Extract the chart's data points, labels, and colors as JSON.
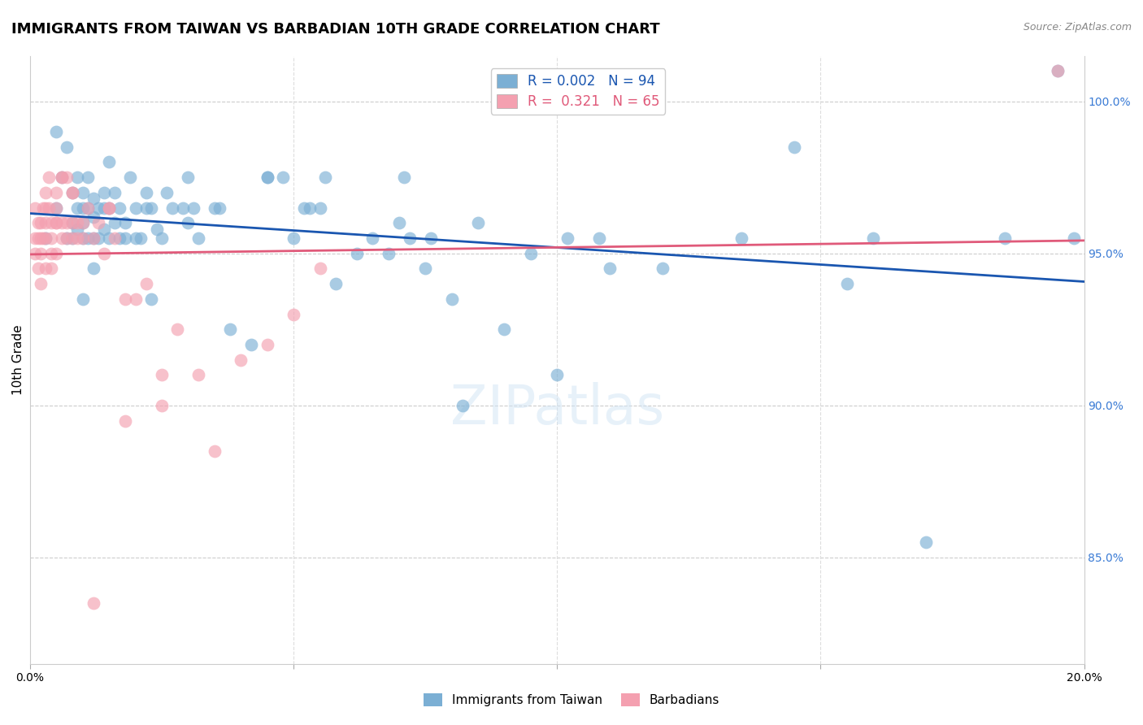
{
  "title": "IMMIGRANTS FROM TAIWAN VS BARBADIAN 10TH GRADE CORRELATION CHART",
  "source": "Source: ZipAtlas.com",
  "ylabel": "10th Grade",
  "xlim": [
    0.0,
    20.0
  ],
  "ylim": [
    81.5,
    101.5
  ],
  "legend_blue_r": "0.002",
  "legend_blue_n": "94",
  "legend_pink_r": "0.321",
  "legend_pink_n": "65",
  "blue_color": "#7bafd4",
  "pink_color": "#f4a0b0",
  "blue_line_color": "#1a56b0",
  "pink_line_color": "#e05a7a",
  "blue_x": [
    0.3,
    0.5,
    0.5,
    0.6,
    0.7,
    0.7,
    0.8,
    0.8,
    0.8,
    0.9,
    0.9,
    0.9,
    1.0,
    1.0,
    1.0,
    1.0,
    1.1,
    1.1,
    1.1,
    1.2,
    1.2,
    1.2,
    1.3,
    1.3,
    1.4,
    1.4,
    1.4,
    1.5,
    1.5,
    1.5,
    1.6,
    1.6,
    1.7,
    1.7,
    1.8,
    1.8,
    1.9,
    2.0,
    2.0,
    2.1,
    2.2,
    2.2,
    2.3,
    2.4,
    2.5,
    2.6,
    2.7,
    2.9,
    3.0,
    3.0,
    3.1,
    3.2,
    3.5,
    3.6,
    4.5,
    4.5,
    4.8,
    5.0,
    5.2,
    5.3,
    5.5,
    5.6,
    6.2,
    6.8,
    7.0,
    7.1,
    7.2,
    7.5,
    7.6,
    8.0,
    8.5,
    9.0,
    9.5,
    10.0,
    10.2,
    10.8,
    11.0,
    12.0,
    13.5,
    14.5,
    15.5,
    16.0,
    17.0,
    18.5,
    19.5,
    19.8,
    1.0,
    1.2,
    2.3,
    3.8,
    4.2,
    5.8,
    6.5,
    8.2
  ],
  "blue_y": [
    95.5,
    99.0,
    96.5,
    97.5,
    98.5,
    95.5,
    97.0,
    96.0,
    95.5,
    96.5,
    95.8,
    97.5,
    96.5,
    97.0,
    95.5,
    96.0,
    97.5,
    96.5,
    95.5,
    96.8,
    96.2,
    95.5,
    96.5,
    95.5,
    96.5,
    97.0,
    95.8,
    98.0,
    96.5,
    95.5,
    97.0,
    96.0,
    96.5,
    95.5,
    96.0,
    95.5,
    97.5,
    96.5,
    95.5,
    95.5,
    97.0,
    96.5,
    96.5,
    95.8,
    95.5,
    97.0,
    96.5,
    96.5,
    97.5,
    96.0,
    96.5,
    95.5,
    96.5,
    96.5,
    97.5,
    97.5,
    97.5,
    95.5,
    96.5,
    96.5,
    96.5,
    97.5,
    95.0,
    95.0,
    96.0,
    97.5,
    95.5,
    94.5,
    95.5,
    93.5,
    96.0,
    92.5,
    95.0,
    91.0,
    95.5,
    95.5,
    94.5,
    94.5,
    95.5,
    98.5,
    94.0,
    95.5,
    85.5,
    95.5,
    101.0,
    95.5,
    93.5,
    94.5,
    93.5,
    92.5,
    92.0,
    94.0,
    95.5,
    90.0
  ],
  "pink_x": [
    0.1,
    0.1,
    0.1,
    0.15,
    0.15,
    0.2,
    0.2,
    0.2,
    0.25,
    0.25,
    0.3,
    0.3,
    0.3,
    0.3,
    0.35,
    0.4,
    0.4,
    0.4,
    0.5,
    0.5,
    0.5,
    0.6,
    0.6,
    0.7,
    0.7,
    0.8,
    0.8,
    0.9,
    0.9,
    1.0,
    1.0,
    1.1,
    1.2,
    1.3,
    1.4,
    1.5,
    1.6,
    1.8,
    2.0,
    2.2,
    2.5,
    2.8,
    3.2,
    4.0,
    4.5,
    5.0,
    5.5,
    0.3,
    0.35,
    0.5,
    0.6,
    0.7,
    0.8,
    1.5,
    0.15,
    0.2,
    0.4,
    0.5,
    0.6,
    0.8,
    1.8,
    2.5,
    3.5,
    19.5,
    1.2
  ],
  "pink_y": [
    96.5,
    95.5,
    95.0,
    96.0,
    95.5,
    96.0,
    95.5,
    95.0,
    96.5,
    95.5,
    96.5,
    96.0,
    95.5,
    94.5,
    97.5,
    96.0,
    95.5,
    95.0,
    96.5,
    96.0,
    95.0,
    96.0,
    95.5,
    96.0,
    95.5,
    96.0,
    95.5,
    96.0,
    95.5,
    96.0,
    95.5,
    96.5,
    95.5,
    96.0,
    95.0,
    96.5,
    95.5,
    93.5,
    93.5,
    94.0,
    91.0,
    92.5,
    91.0,
    91.5,
    92.0,
    93.0,
    94.5,
    97.0,
    96.5,
    97.0,
    97.5,
    97.5,
    97.0,
    96.5,
    94.5,
    94.0,
    94.5,
    96.0,
    97.5,
    97.0,
    89.5,
    90.0,
    88.5,
    101.0,
    83.5
  ]
}
